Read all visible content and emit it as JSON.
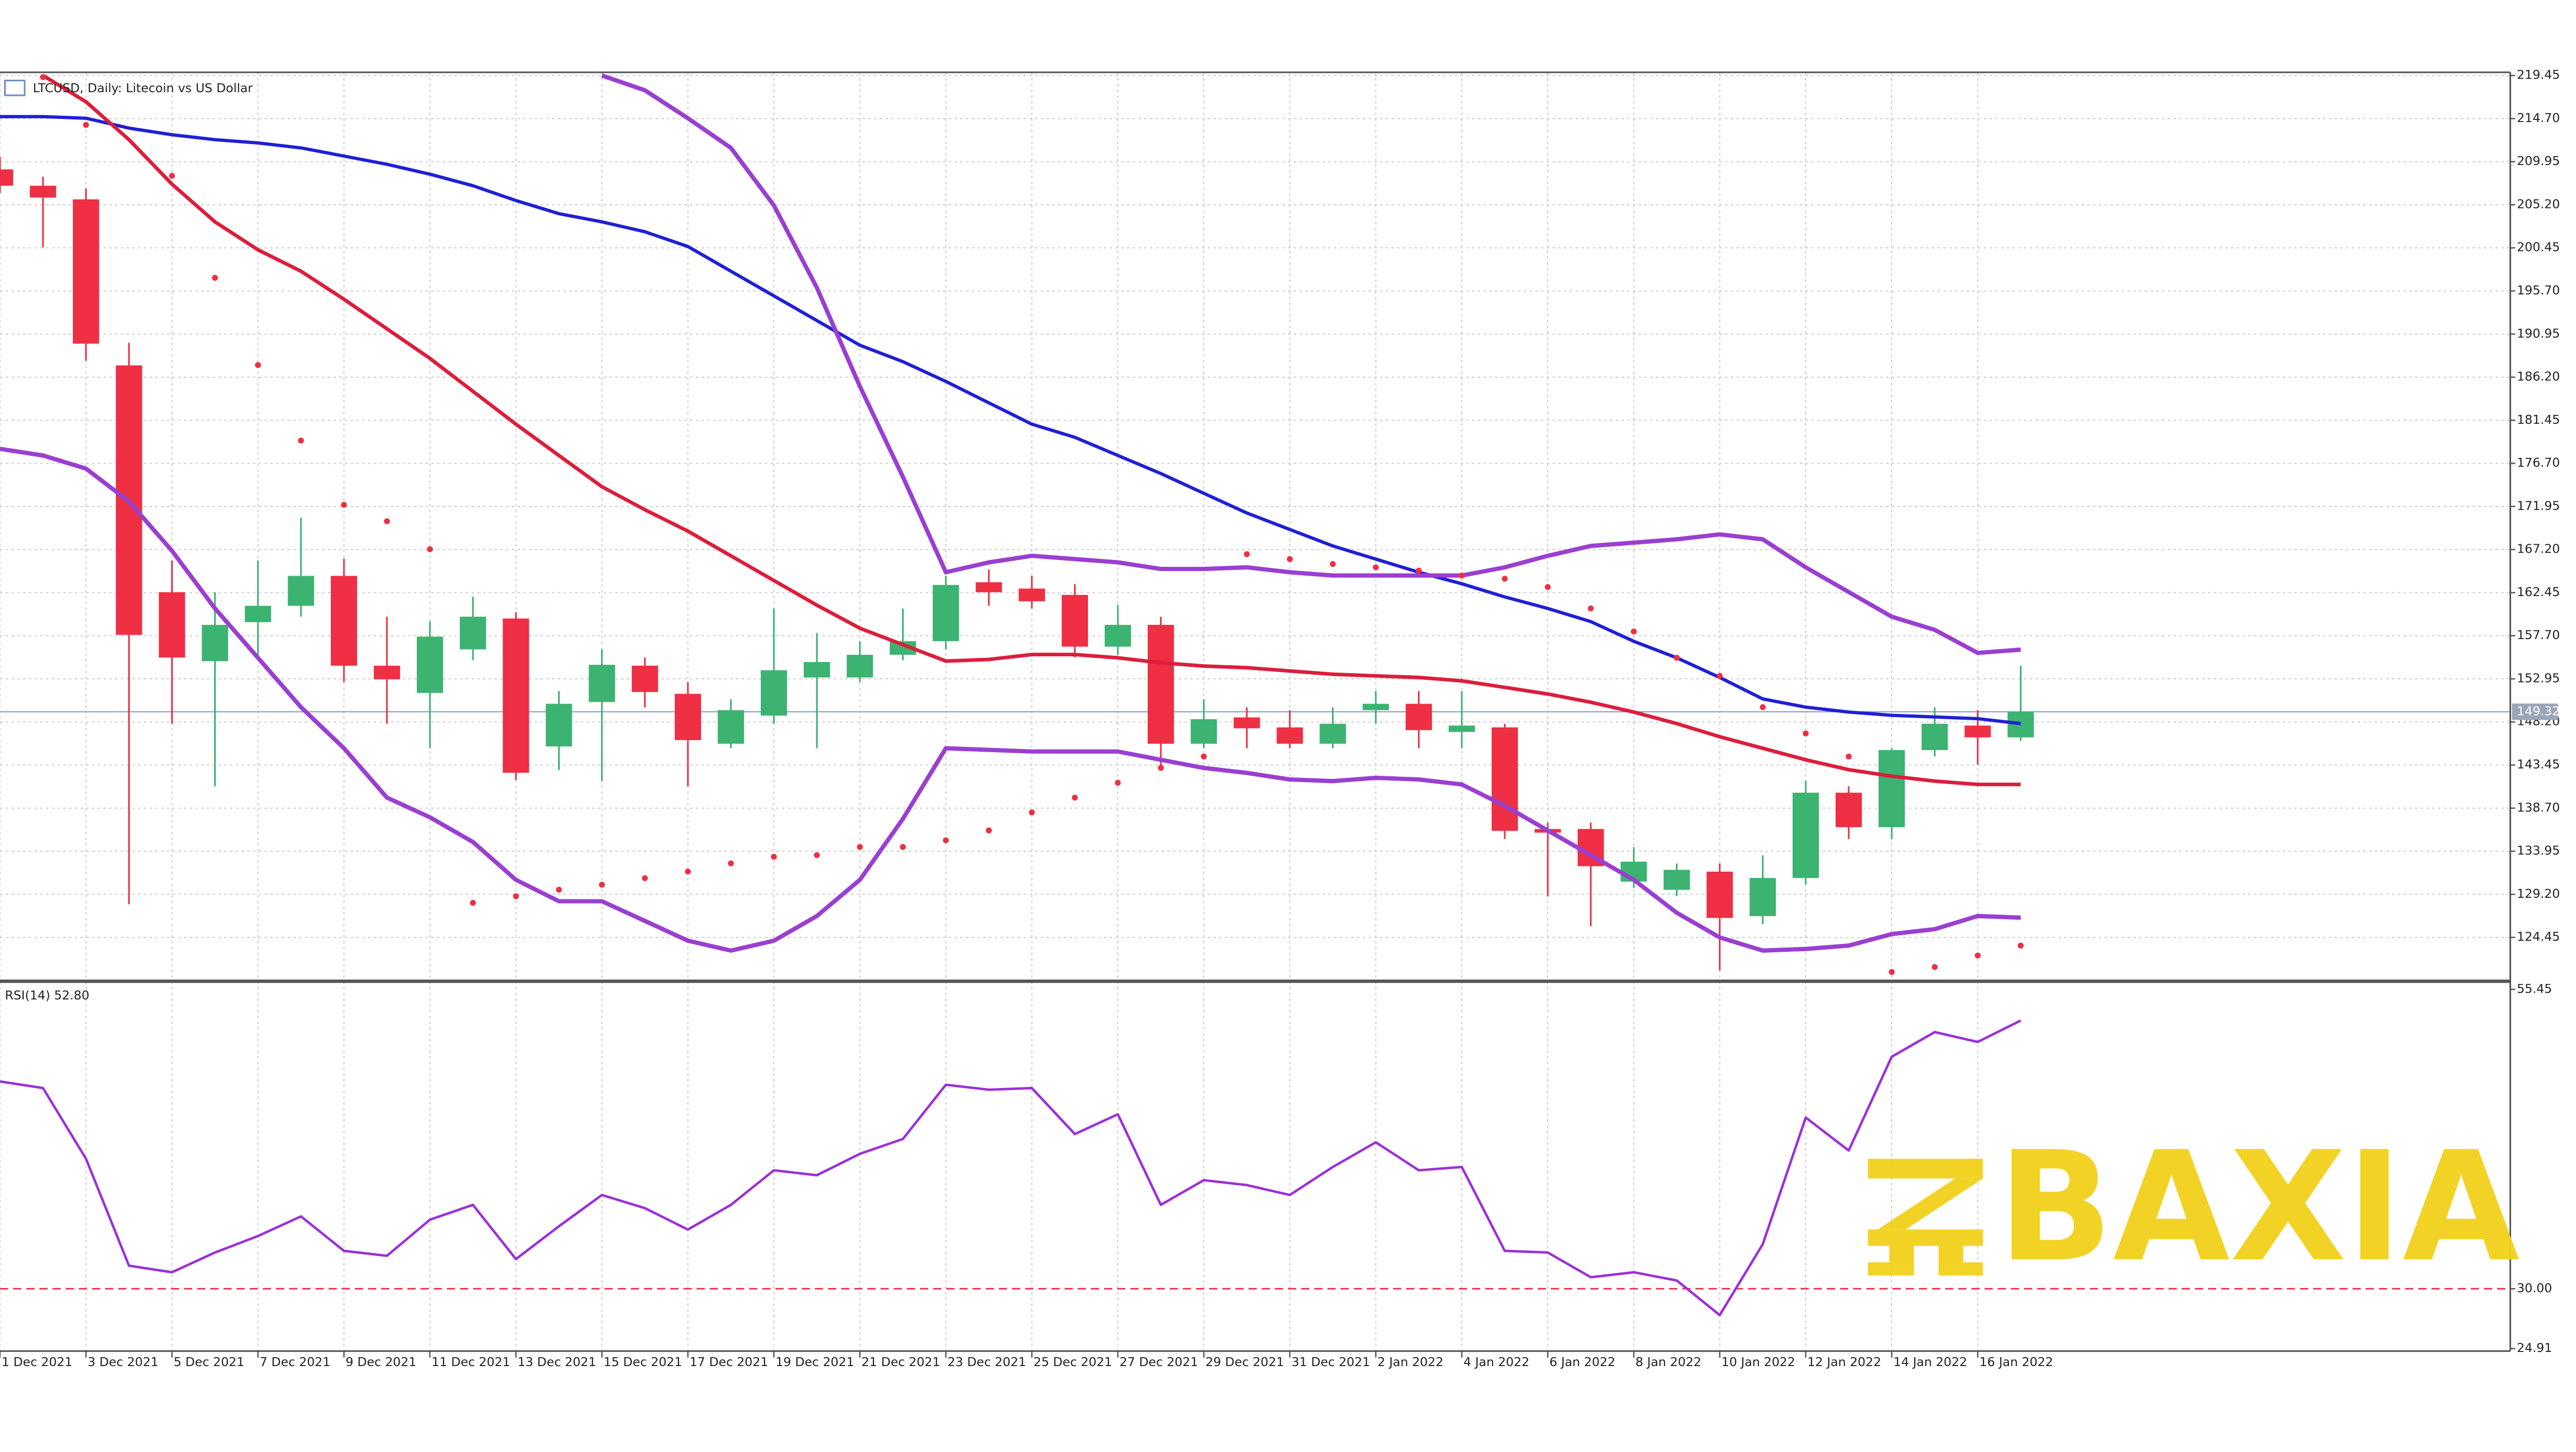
{
  "chart_data": [
    {
      "type": "candlestick",
      "title": "LTCUSD, Daily: Litecoin vs US Dollar",
      "categories": [
        "1 Dec 2021",
        null,
        "3 Dec 2021",
        null,
        "5 Dec 2021",
        null,
        "7 Dec 2021",
        null,
        "9 Dec 2021",
        null,
        "11 Dec 2021",
        null,
        "13 Dec 2021",
        null,
        "15 Dec 2021",
        null,
        "17 Dec 2021",
        null,
        "19 Dec 2021",
        null,
        "21 Dec 2021",
        null,
        "23 Dec 2021",
        null,
        "25 Dec 2021",
        null,
        "27 Dec 2021",
        null,
        "29 Dec 2021",
        null,
        "31 Dec 2021",
        null,
        "2 Jan 2022",
        null,
        "4 Jan 2022",
        null,
        "6 Jan 2022",
        null,
        "8 Jan 2022",
        null,
        "10 Jan 2022",
        null,
        "12 Jan 2022",
        null,
        "14 Jan 2022",
        null,
        "16 Jan 2022",
        null
      ],
      "open": [
        209.1,
        207.3,
        205.8,
        187.5,
        162.5,
        154.9,
        159.2,
        161.0,
        164.3,
        154.4,
        151.4,
        156.2,
        159.6,
        145.5,
        150.4,
        154.4,
        151.3,
        145.8,
        148.9,
        153.1,
        153.1,
        155.6,
        157.1,
        163.6,
        162.9,
        162.2,
        156.5,
        158.9,
        145.8,
        148.7,
        147.6,
        145.8,
        149.5,
        150.2,
        147.1,
        147.6,
        136.4,
        136.4,
        130.6,
        129.7,
        131.7,
        126.8,
        131.0,
        140.4,
        136.6,
        145.1,
        147.8,
        146.5
      ],
      "high": [
        210.5,
        208.3,
        207.0,
        190.0,
        166.0,
        162.5,
        166.0,
        170.7,
        166.2,
        159.8,
        159.3,
        162.0,
        160.3,
        151.6,
        156.2,
        155.3,
        152.6,
        150.7,
        160.7,
        158.0,
        157.1,
        160.7,
        164.3,
        165.0,
        164.3,
        163.4,
        161.1,
        159.8,
        150.7,
        149.8,
        149.5,
        149.8,
        151.6,
        151.6,
        151.6,
        148.0,
        137.1,
        137.1,
        134.4,
        132.6,
        132.6,
        133.5,
        141.7,
        141.1,
        145.3,
        149.8,
        149.5,
        154.4
      ],
      "low": [
        206.5,
        200.5,
        188.0,
        128.1,
        148.0,
        141.1,
        155.0,
        159.8,
        152.6,
        148.0,
        145.3,
        155.0,
        141.8,
        142.9,
        141.7,
        149.8,
        141.1,
        145.3,
        148.0,
        145.3,
        152.6,
        155.0,
        156.2,
        161.0,
        160.7,
        155.3,
        155.6,
        142.9,
        145.3,
        145.3,
        145.3,
        145.3,
        148.0,
        145.3,
        145.3,
        135.3,
        129.0,
        125.7,
        129.9,
        129.0,
        120.8,
        125.9,
        130.3,
        135.3,
        135.3,
        144.4,
        143.5,
        146.1
      ],
      "close": [
        207.3,
        206.0,
        189.9,
        157.8,
        155.3,
        158.9,
        161.0,
        164.3,
        154.4,
        152.9,
        157.6,
        159.8,
        142.6,
        150.2,
        154.5,
        151.5,
        146.2,
        149.5,
        153.9,
        154.8,
        155.6,
        157.1,
        163.3,
        162.5,
        161.5,
        156.5,
        158.9,
        145.8,
        148.5,
        147.5,
        145.8,
        148.0,
        150.2,
        147.3,
        147.8,
        136.2,
        136.0,
        132.3,
        132.8,
        131.9,
        126.6,
        131.0,
        140.4,
        136.6,
        145.1,
        148.0,
        146.5,
        149.32
      ],
      "up_color": "#3cb371",
      "down_color": "#ee2f44",
      "lines": [
        {
          "color": "#1f1fd6",
          "width": 2,
          "values": [
            214.92,
            214.92,
            214.74,
            213.65,
            212.92,
            212.38,
            212.02,
            211.47,
            210.57,
            209.66,
            208.57,
            207.3,
            205.67,
            204.22,
            203.32,
            202.23,
            200.6,
            197.88,
            195.16,
            192.44,
            189.72,
            187.91,
            185.73,
            183.37,
            181.02,
            179.57,
            177.57,
            175.58,
            173.4,
            171.23,
            169.41,
            167.6,
            166.15,
            164.7,
            163.43,
            161.98,
            160.71,
            159.26,
            157.09,
            155.27,
            153.1,
            150.74,
            149.83,
            149.29,
            148.93,
            148.75,
            148.56,
            148.02
          ]
        },
        {
          "color": "#dc1e3c",
          "width": 2.2,
          "values": [
            null,
            219.45,
            216.55,
            212.38,
            207.48,
            203.32,
            200.24,
            197.88,
            194.79,
            191.53,
            188.27,
            184.64,
            181.02,
            177.57,
            174.13,
            171.59,
            169.23,
            166.51,
            163.79,
            161.07,
            158.53,
            156.72,
            154.91,
            155.09,
            155.63,
            155.63,
            155.27,
            154.72,
            154.36,
            154.18,
            153.82,
            153.46,
            153.28,
            153.1,
            152.73,
            152.01,
            151.28,
            150.37,
            149.29,
            148.02,
            146.57,
            145.3,
            144.03,
            142.94,
            142.22,
            141.68,
            141.31,
            141.31
          ]
        },
        {
          "color": "#9a3fd0",
          "width": 2.6,
          "values": [
            null,
            null,
            null,
            null,
            null,
            null,
            null,
            null,
            null,
            null,
            null,
            null,
            null,
            null,
            219.45,
            217.82,
            214.74,
            211.47,
            205.13,
            196.06,
            185.19,
            175.22,
            164.7,
            165.79,
            166.51,
            166.15,
            165.79,
            165.06,
            165.06,
            165.24,
            164.7,
            164.34,
            164.34,
            164.34,
            164.34,
            165.24,
            166.51,
            167.6,
            167.96,
            168.33,
            168.87,
            168.33,
            165.24,
            162.52,
            159.8,
            158.35,
            155.81,
            156.17
          ]
        },
        {
          "color": "#9a3fd0",
          "width": 2.6,
          "values": [
            178.3,
            177.57,
            176.12,
            172.5,
            167.06,
            160.71,
            155.27,
            149.83,
            145.3,
            139.86,
            137.69,
            134.97,
            130.8,
            128.44,
            128.44,
            126.27,
            124.09,
            123.0,
            124.09,
            126.81,
            130.8,
            137.51,
            145.3,
            145.12,
            144.94,
            144.94,
            144.94,
            144.03,
            143.13,
            142.58,
            141.86,
            141.68,
            142.04,
            141.86,
            141.31,
            138.96,
            136.24,
            133.52,
            130.8,
            127.17,
            124.45,
            123.0,
            123.18,
            123.55,
            124.82,
            125.36,
            126.81,
            126.63
          ]
        }
      ],
      "dots": {
        "color": "#ee2f44",
        "values": [
          null,
          219.27,
          214.01,
          null,
          208.39,
          197.15,
          187.54,
          179.21,
          172.13,
          170.32,
          167.24,
          128.26,
          128.99,
          129.71,
          130.26,
          130.98,
          131.71,
          132.61,
          133.34,
          133.52,
          134.42,
          134.42,
          135.15,
          136.24,
          138.23,
          139.86,
          141.5,
          143.13,
          144.39,
          166.69,
          166.15,
          165.61,
          165.24,
          164.88,
          164.34,
          163.98,
          163.07,
          160.71,
          158.17,
          155.27,
          153.28,
          149.83,
          146.93,
          144.39,
          120.64,
          121.19,
          122.46,
          123.55
        ]
      },
      "ylim": [
        119.8,
        219.8
      ],
      "yticks": [
        219.45,
        {
          "value": 214.7,
          "label": "214.70"
        },
        209.95,
        {
          "value": 205.2,
          "label": "205.20"
        },
        200.45,
        {
          "value": 195.7,
          "label": "195.70"
        },
        190.95,
        {
          "value": 186.2,
          "label": "186.20"
        },
        181.45,
        {
          "value": 176.7,
          "label": "176.70"
        },
        171.95,
        {
          "value": 167.2,
          "label": "167.20"
        },
        162.45,
        {
          "value": 157.7,
          "label": "157.70"
        },
        152.95,
        {
          "value": 148.2,
          "label": "148.20"
        },
        143.45,
        {
          "value": 138.7,
          "label": "138.70"
        },
        133.95,
        {
          "value": 129.2,
          "label": "129.20"
        },
        124.45
      ],
      "last_price": 149.32,
      "grid": true
    },
    {
      "type": "line",
      "title": "RSI(14) 52.80",
      "color": "#9b30d9",
      "values": [
        47.62,
        47.06,
        41.05,
        31.96,
        31.4,
        33.08,
        34.48,
        36.15,
        33.22,
        32.8,
        35.87,
        37.13,
        32.52,
        35.31,
        37.97,
        36.85,
        35.03,
        37.13,
        40.07,
        39.65,
        41.47,
        42.73,
        47.34,
        46.92,
        47.06,
        43.15,
        44.83,
        37.13,
        39.23,
        38.81,
        37.97,
        40.35,
        42.45,
        40.07,
        40.35,
        33.22,
        33.08,
        30.98,
        31.4,
        30.7,
        27.76,
        33.78,
        44.55,
        41.75,
        49.72,
        51.82,
        50.98,
        52.8
      ],
      "ylim": [
        24.7,
        56.0
      ],
      "yticks": [
        24.91,
        {
          "value": 30,
          "label": "30.00"
        },
        55.45
      ],
      "level": 30,
      "level_color": "#ee2f44"
    }
  ],
  "watermark": "BAXIA"
}
